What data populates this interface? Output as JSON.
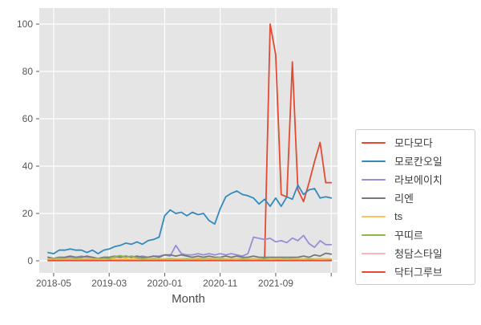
{
  "chart_data": {
    "type": "line",
    "title": "",
    "xlabel": "Month",
    "ylabel": "",
    "ylim": [
      0,
      100
    ],
    "grid": true,
    "legend_position": "right-outside",
    "plot_background": "#e5e5e5",
    "grid_color": "#ffffff",
    "tick_text_color": "#555555",
    "axis_label_color": "#4a4a4a",
    "x_months": [
      "2018-04",
      "2018-05",
      "2018-06",
      "2018-07",
      "2018-08",
      "2018-09",
      "2018-10",
      "2018-11",
      "2018-12",
      "2019-01",
      "2019-02",
      "2019-03",
      "2019-04",
      "2019-05",
      "2019-06",
      "2019-07",
      "2019-08",
      "2019-09",
      "2019-10",
      "2019-11",
      "2019-12",
      "2020-01",
      "2020-02",
      "2020-03",
      "2020-04",
      "2020-05",
      "2020-06",
      "2020-07",
      "2020-08",
      "2020-09",
      "2020-10",
      "2020-11",
      "2020-12",
      "2021-01",
      "2021-02",
      "2021-03",
      "2021-04",
      "2021-05",
      "2021-06",
      "2021-07",
      "2021-08",
      "2021-09",
      "2021-10",
      "2021-11",
      "2021-12",
      "2022-01",
      "2022-02",
      "2022-03",
      "2022-04",
      "2022-05",
      "2022-06",
      "2022-07"
    ],
    "x_ticks": {
      "indices": [
        1,
        11,
        21,
        31,
        41,
        51
      ],
      "labels": [
        "2018-05",
        "2019-03",
        "2020-01",
        "2020-11",
        "2021-09",
        ""
      ]
    },
    "y_ticks": [
      0,
      20,
      40,
      60,
      80,
      100
    ],
    "series": [
      {
        "name": "모다모다",
        "color": "#E24A33",
        "values": [
          0.5,
          0.5,
          0.5,
          0.5,
          0.5,
          0.5,
          0.5,
          0.5,
          0.5,
          0.5,
          0.5,
          0.5,
          0.5,
          0.5,
          0.5,
          0.5,
          0.5,
          0.5,
          0.5,
          0.5,
          0.5,
          0.5,
          0.5,
          0.5,
          0.5,
          0.5,
          0.5,
          0.5,
          0.5,
          0.5,
          0.5,
          0.5,
          0.5,
          0.5,
          0.5,
          0.5,
          0.5,
          0.5,
          0.5,
          1,
          100,
          87,
          28,
          27,
          84,
          30,
          25,
          33,
          42,
          50,
          33,
          33
        ]
      },
      {
        "name": "모로칸오일",
        "color": "#348ABD",
        "values": [
          3.5,
          3,
          4.5,
          4.5,
          5,
          4.5,
          4.5,
          3.5,
          4.5,
          3,
          4.5,
          5,
          6,
          6.5,
          7.5,
          7,
          8,
          7,
          8.5,
          9,
          10,
          19,
          21.5,
          20,
          20.5,
          19,
          20.5,
          19.5,
          20,
          17,
          15.5,
          22,
          27,
          28.5,
          29.5,
          28,
          27.5,
          26.5,
          24,
          26,
          23,
          26.5,
          23,
          27,
          26,
          32,
          28,
          30,
          30.5,
          26.5,
          27,
          26.5
        ]
      },
      {
        "name": "라보에이치",
        "color": "#988ED5",
        "values": [
          1.5,
          1,
          1.5,
          1,
          1.5,
          1.5,
          2,
          1.5,
          1.5,
          1,
          1.5,
          1.5,
          1.5,
          2,
          1.5,
          2,
          1.5,
          2,
          1.5,
          2,
          2,
          2.5,
          2,
          6.5,
          3,
          2.5,
          2.5,
          3,
          2.5,
          3,
          2.5,
          3,
          2.5,
          3,
          2.5,
          2,
          3,
          10,
          9.5,
          9,
          9.5,
          8,
          8.5,
          7.7,
          9.6,
          8.5,
          10.7,
          7.3,
          5.7,
          8.5,
          6.8,
          6.8
        ]
      },
      {
        "name": "리엔",
        "color": "#777777",
        "values": [
          1.5,
          1,
          1.5,
          1.5,
          2,
          1.5,
          1.5,
          2,
          1.5,
          1,
          1.5,
          1.5,
          2,
          1.5,
          2,
          1.5,
          2,
          1.5,
          1.5,
          2,
          1.5,
          2.5,
          2.5,
          2,
          2.5,
          2,
          1.5,
          2,
          1.5,
          2,
          1.5,
          1.5,
          2,
          1.5,
          2,
          1.5,
          1.5,
          2,
          1.5,
          1.5,
          1.5,
          1.5,
          1.5,
          1.5,
          1.5,
          1.5,
          2,
          1.5,
          2.5,
          2,
          3.2,
          2.8
        ]
      },
      {
        "name": "ts",
        "color": "#FBC15E",
        "values": [
          0.8,
          0.8,
          1,
          0.8,
          1,
          0.8,
          0.8,
          1,
          0.8,
          0.8,
          0.8,
          1,
          0.8,
          1,
          0.8,
          0.8,
          1,
          0.8,
          1,
          1.2,
          0.8,
          0.8,
          1,
          0.8,
          0.8,
          1,
          0.8,
          1.2,
          1,
          1.2,
          1,
          1.2,
          0.8,
          0.8,
          1,
          0.8,
          0.8,
          1,
          0.8,
          0.8,
          1,
          0.8,
          0.8,
          1,
          0.8,
          1,
          0.8,
          1,
          0.8,
          1,
          0.8,
          0.8
        ]
      },
      {
        "name": "꾸띠르",
        "color": "#8EBA42",
        "values": [
          0.5,
          0.5,
          0.7,
          0.5,
          0.5,
          0.7,
          0.5,
          0.5,
          0.5,
          0.5,
          0.7,
          1,
          1.8,
          2.2,
          1.5,
          2,
          1.2,
          0.8,
          0.5,
          0.7,
          0.5,
          0.5,
          0.7,
          0.5,
          0.5,
          0.7,
          0.5,
          0.5,
          0.7,
          0.5,
          0.5,
          0.7,
          0.5,
          0.5,
          0.5,
          0.7,
          0.5,
          0.5,
          0.5,
          0.7,
          0.5,
          0.5,
          0.5,
          0.7,
          0.5,
          0.5,
          0.5,
          0.7,
          0.5,
          0.5,
          0.5,
          0.5
        ]
      },
      {
        "name": "청담스타일",
        "color": "#FFB5B8",
        "values": [
          0.3,
          0.3,
          0.4,
          0.3,
          0.3,
          0.4,
          0.3,
          0.3,
          0.3,
          0.3,
          0.4,
          0.3,
          0.3,
          0.4,
          0.3,
          0.3,
          0.4,
          0.3,
          0.3,
          0.4,
          0.3,
          0.3,
          0.4,
          0.3,
          0.3,
          0.4,
          0.3,
          0.3,
          0.4,
          0.3,
          0.3,
          0.4,
          0.3,
          0.3,
          0.4,
          0.3,
          0.3,
          0.4,
          0.3,
          0.3,
          0.4,
          0.3,
          0.3,
          0.4,
          0.3,
          0.3,
          0.4,
          0.3,
          0.3,
          0.4,
          0.3,
          0.3
        ]
      },
      {
        "name": "닥터그루브",
        "color": "#E24A33",
        "values": [
          0.1,
          0.1,
          0.1,
          0.1,
          0.1,
          0.1,
          0.1,
          0.1,
          0.1,
          0.1,
          0.1,
          0.1,
          0.1,
          0.1,
          0.1,
          0.1,
          0.1,
          0.1,
          0.1,
          0.1,
          0.1,
          0.1,
          0.1,
          0.1,
          0.1,
          0.1,
          0.1,
          0.1,
          0.1,
          0.1,
          0.1,
          0.1,
          0.1,
          0.1,
          0.1,
          0.1,
          0.1,
          0.1,
          0.1,
          0.1,
          0.1,
          0.1,
          0.1,
          0.1,
          0.1,
          0.1,
          0.1,
          0.1,
          0.1,
          0.1,
          0.1,
          0.1
        ]
      }
    ]
  }
}
